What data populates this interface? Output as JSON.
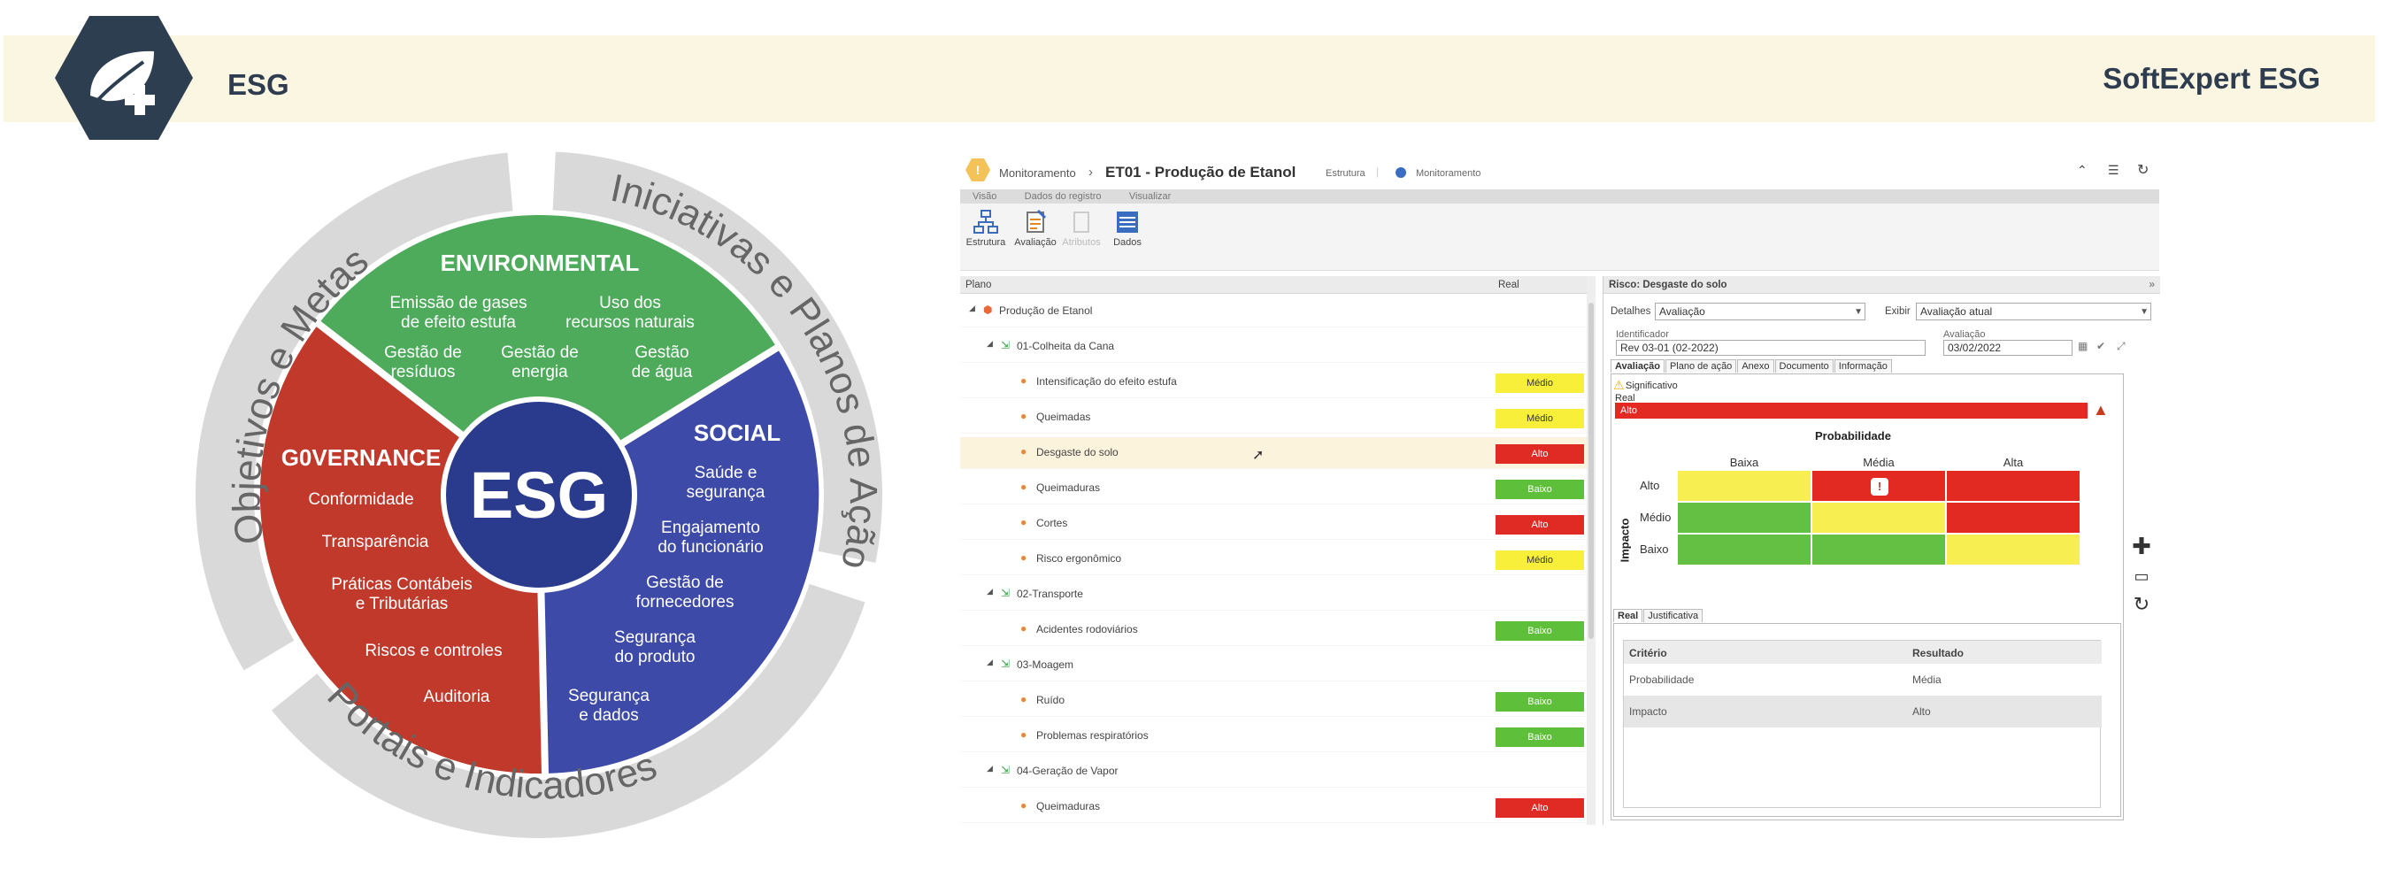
{
  "banner": {
    "title": "ESG",
    "brand": "SoftExpert ESG"
  },
  "wheel": {
    "center": "ESG",
    "outer": {
      "left": "Objetivos e Metas",
      "right": "Iniciativas e Planos de Ação",
      "bottom": "Portais e Indicadores"
    },
    "environmental": {
      "title": "ENVIRONMENTAL",
      "items": [
        "Emissão de gases",
        "de efeito estufa",
        "Uso dos",
        "recursos naturais",
        "Gestão de",
        "resíduos",
        "Gestão de",
        "energia",
        "Gestão",
        "de água"
      ]
    },
    "social": {
      "title": "SOCIAL",
      "items": [
        "Saúde e",
        "segurança",
        "Engajamento",
        "do funcionário",
        "Gestão de",
        "fornecedores",
        "Segurança",
        "do produto",
        "Segurança",
        "e dados"
      ]
    },
    "governance": {
      "title": "G0VERNANCE",
      "items": [
        "Conformidade",
        "Transparência",
        "Práticas Contábeis",
        "e Tributárias",
        "Riscos e controles",
        "Auditoria"
      ]
    },
    "colors": {
      "environmental": "#4eab5c",
      "social": "#3d4aa8",
      "governance": "#c0392b",
      "center": "#2a3a8c",
      "ring": "#dcdcdc"
    }
  },
  "app": {
    "breadcrumb_root": "Monitoramento",
    "title": "ET01 - Produção de Etanol",
    "sub1": "Estrutura",
    "sub2": "Monitoramento",
    "menus": [
      "Visão",
      "Dados do registro",
      "Visualizar"
    ],
    "tools": [
      {
        "label": "Estrutura",
        "icon": "structure-icon"
      },
      {
        "label": "Avaliação",
        "icon": "evaluation-icon"
      },
      {
        "label": "Atributos",
        "icon": "attributes-icon"
      },
      {
        "label": "Dados",
        "icon": "data-icon"
      }
    ],
    "grid": {
      "col_plano": "Plano",
      "col_real": "Real",
      "rows": [
        {
          "label": "Produção de Etanol",
          "level": 0,
          "type": "root",
          "badge": null
        },
        {
          "label": "01-Colheita da Cana",
          "level": 1,
          "type": "group",
          "badge": null
        },
        {
          "label": "Intensificação do efeito estufa",
          "level": 2,
          "type": "risk",
          "badge": "Médio",
          "color": "yellow"
        },
        {
          "label": "Queimadas",
          "level": 2,
          "type": "risk",
          "badge": "Médio",
          "color": "yellow"
        },
        {
          "label": "Desgaste do solo",
          "level": 2,
          "type": "risk",
          "badge": "Alto",
          "color": "red",
          "selected": true
        },
        {
          "label": "Queimaduras",
          "level": 2,
          "type": "risk",
          "badge": "Baixo",
          "color": "green"
        },
        {
          "label": "Cortes",
          "level": 2,
          "type": "risk",
          "badge": "Alto",
          "color": "red"
        },
        {
          "label": "Risco ergonômico",
          "level": 2,
          "type": "risk",
          "badge": "Médio",
          "color": "yellow"
        },
        {
          "label": "02-Transporte",
          "level": 1,
          "type": "group",
          "badge": null
        },
        {
          "label": "Acidentes rodoviários",
          "level": 2,
          "type": "risk",
          "badge": "Baixo",
          "color": "green"
        },
        {
          "label": "03-Moagem",
          "level": 1,
          "type": "group",
          "badge": null
        },
        {
          "label": "Ruído",
          "level": 2,
          "type": "risk",
          "badge": "Baixo",
          "color": "green"
        },
        {
          "label": "Problemas respiratórios",
          "level": 2,
          "type": "risk",
          "badge": "Baixo",
          "color": "green"
        },
        {
          "label": "04-Geração de Vapor",
          "level": 1,
          "type": "group",
          "badge": null
        },
        {
          "label": "Queimaduras",
          "level": 2,
          "type": "risk",
          "badge": "Alto",
          "color": "red"
        }
      ]
    },
    "panel": {
      "header": "Risco: Desgaste do solo",
      "detalhes_label": "Detalhes",
      "detalhes_value": "Avaliação",
      "exibir_label": "Exibir",
      "exibir_value": "Avaliação atual",
      "ident_label": "Identificador",
      "ident_value": "Rev 03-01 (02-2022)",
      "aval_label": "Avaliação",
      "aval_value": "03/02/2022",
      "tabs": [
        "Avaliação",
        "Plano de ação",
        "Anexo",
        "Documento",
        "Informação"
      ],
      "significativo": "Significativo",
      "real_label": "Real",
      "real_value": "Alto",
      "matrix": {
        "title": "Probabilidade",
        "impact_label": "Impacto",
        "cols": [
          "Baixa",
          "Média",
          "Alta"
        ],
        "rows": [
          "Alto",
          "Médio",
          "Baixo"
        ],
        "colors": [
          [
            "y",
            "r",
            "r"
          ],
          [
            "g",
            "y",
            "r"
          ],
          [
            "g",
            "g",
            "y"
          ]
        ],
        "marker_row": 0,
        "marker_col": 1
      },
      "subtabs": [
        "Real",
        "Justificativa"
      ],
      "table": {
        "headers": [
          "Critério",
          "Resultado"
        ],
        "rows": [
          [
            "Probabilidade",
            "Média"
          ],
          [
            "Impacto",
            "Alto"
          ]
        ]
      }
    }
  }
}
